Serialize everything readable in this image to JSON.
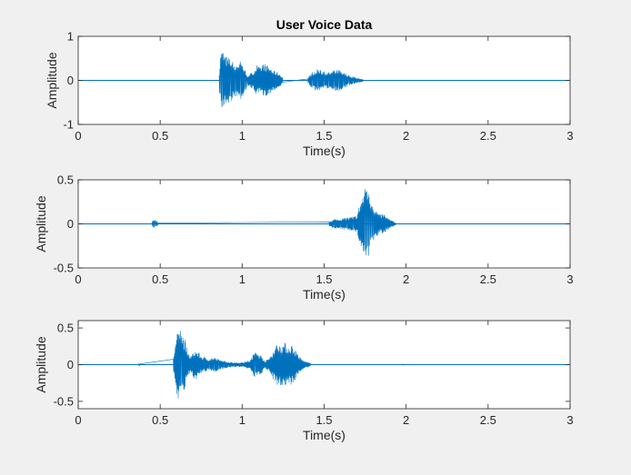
{
  "figure": {
    "background": "#f0f0f0",
    "series_color": "#0072bd"
  },
  "chart_data": [
    {
      "type": "line",
      "title": "User Voice Data",
      "xlabel": "Time(s)",
      "ylabel": "Amplitude",
      "xlim": [
        0,
        3
      ],
      "ylim": [
        -1,
        1
      ],
      "xticks": [
        0,
        0.5,
        1,
        1.5,
        2,
        2.5,
        3
      ],
      "xtick_labels": [
        "0",
        "0.5",
        "1",
        "1.5",
        "2",
        "2.5",
        "3"
      ],
      "yticks": [
        -1,
        0,
        1
      ],
      "ytick_labels": [
        "-1",
        "0",
        "1"
      ],
      "grid": false,
      "series": [
        {
          "x": [
            0.86,
            0.87,
            0.88,
            0.9,
            0.93,
            0.96,
            0.99,
            1.02,
            1.03,
            1.05,
            1.07,
            1.09,
            1.11,
            1.13,
            1.15,
            1.17,
            1.19,
            1.21,
            1.23,
            1.25,
            1.4,
            1.43,
            1.46,
            1.5,
            1.53,
            1.56,
            1.59,
            1.62,
            1.65,
            1.68,
            1.71,
            1.74
          ],
          "y": [
            0.2,
            0.65,
            0.7,
            0.55,
            0.5,
            0.35,
            0.45,
            0.25,
            0.12,
            0.15,
            0.22,
            0.35,
            0.28,
            0.4,
            0.34,
            0.3,
            0.22,
            0.2,
            0.15,
            0.05,
            0.05,
            0.2,
            0.25,
            0.2,
            0.18,
            0.22,
            0.25,
            0.18,
            0.12,
            0.08,
            0.05,
            0.02
          ]
        }
      ]
    },
    {
      "type": "line",
      "title": "",
      "xlabel": "Time(s)",
      "ylabel": "Amplitude",
      "xlim": [
        0,
        3
      ],
      "ylim": [
        -0.5,
        0.5
      ],
      "xticks": [
        0,
        0.5,
        1,
        1.5,
        2,
        2.5,
        3
      ],
      "xtick_labels": [
        "0",
        "0.5",
        "1",
        "1.5",
        "2",
        "2.5",
        "3"
      ],
      "yticks": [
        -0.5,
        0,
        0.5
      ],
      "ytick_labels": [
        "-0.5",
        "0",
        "0.5"
      ],
      "grid": false,
      "series": [
        {
          "x": [
            0.45,
            0.46,
            0.47,
            0.48,
            0.49,
            1.53,
            1.56,
            1.6,
            1.64,
            1.68,
            1.7,
            1.72,
            1.74,
            1.75,
            1.76,
            1.77,
            1.78,
            1.79,
            1.8,
            1.82,
            1.84,
            1.86,
            1.88,
            1.9,
            1.92,
            1.94
          ],
          "y": [
            0.02,
            0.05,
            0.04,
            0.03,
            0.01,
            0.03,
            0.05,
            0.06,
            0.07,
            0.08,
            0.1,
            0.25,
            0.35,
            0.42,
            0.45,
            0.4,
            0.3,
            0.25,
            0.2,
            0.15,
            0.1,
            0.12,
            0.08,
            0.05,
            0.03,
            0.01
          ]
        }
      ]
    },
    {
      "type": "line",
      "title": "",
      "xlabel": "Time(s)",
      "ylabel": "Amplitude",
      "xlim": [
        0,
        3
      ],
      "ylim": [
        -0.6,
        0.6
      ],
      "xticks": [
        0,
        0.5,
        1,
        1.5,
        2,
        2.5,
        3
      ],
      "xtick_labels": [
        "0",
        "0.5",
        "1",
        "1.5",
        "2",
        "2.5",
        "3"
      ],
      "yticks": [
        -0.5,
        0,
        0.5
      ],
      "ytick_labels": [
        "-0.5",
        "0",
        "0.5"
      ],
      "grid": false,
      "series": [
        {
          "x": [
            0.37,
            0.38,
            0.58,
            0.6,
            0.62,
            0.63,
            0.65,
            0.67,
            0.69,
            0.71,
            0.73,
            0.75,
            0.77,
            0.8,
            0.83,
            0.86,
            0.89,
            0.92,
            0.95,
            1.0,
            1.05,
            1.08,
            1.1,
            1.12,
            1.14,
            1.16,
            1.18,
            1.2,
            1.22,
            1.24,
            1.26,
            1.28,
            1.3,
            1.32,
            1.34,
            1.36,
            1.38,
            1.42,
            1.98
          ],
          "y": [
            0.02,
            0.01,
            0.1,
            0.4,
            0.52,
            0.45,
            0.35,
            0.15,
            0.12,
            0.2,
            0.18,
            0.12,
            0.1,
            0.08,
            0.1,
            0.07,
            0.05,
            0.04,
            0.03,
            0.03,
            0.06,
            0.2,
            0.15,
            0.12,
            0.05,
            0.08,
            0.15,
            0.25,
            0.3,
            0.28,
            0.3,
            0.25,
            0.28,
            0.22,
            0.15,
            0.08,
            0.05,
            0.02,
            0.01
          ]
        }
      ]
    }
  ]
}
